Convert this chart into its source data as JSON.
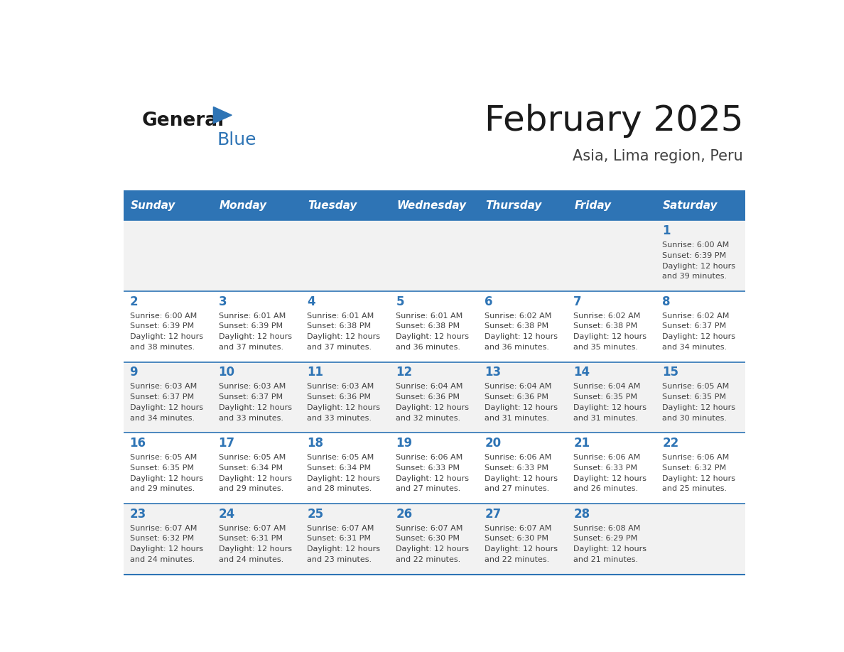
{
  "title": "February 2025",
  "subtitle": "Asia, Lima region, Peru",
  "header_bg": "#2e74b5",
  "header_text_color": "#ffffff",
  "weekdays": [
    "Sunday",
    "Monday",
    "Tuesday",
    "Wednesday",
    "Thursday",
    "Friday",
    "Saturday"
  ],
  "bg_color": "#ffffff",
  "cell_bg_odd": "#f2f2f2",
  "cell_bg_even": "#ffffff",
  "day_number_color": "#2e74b5",
  "text_color": "#404040",
  "line_color": "#2e74b5",
  "logo_general_color": "#1a1a1a",
  "logo_blue_color": "#2e74b5",
  "logo_triangle_color": "#2e74b5",
  "calendar": [
    [
      {
        "day": "",
        "sunrise": "",
        "sunset": "",
        "daylight": ""
      },
      {
        "day": "",
        "sunrise": "",
        "sunset": "",
        "daylight": ""
      },
      {
        "day": "",
        "sunrise": "",
        "sunset": "",
        "daylight": ""
      },
      {
        "day": "",
        "sunrise": "",
        "sunset": "",
        "daylight": ""
      },
      {
        "day": "",
        "sunrise": "",
        "sunset": "",
        "daylight": ""
      },
      {
        "day": "",
        "sunrise": "",
        "sunset": "",
        "daylight": ""
      },
      {
        "day": "1",
        "sunrise": "6:00 AM",
        "sunset": "6:39 PM",
        "daylight_h": "12 hours",
        "daylight_m": "and 39 minutes."
      }
    ],
    [
      {
        "day": "2",
        "sunrise": "6:00 AM",
        "sunset": "6:39 PM",
        "daylight_h": "12 hours",
        "daylight_m": "and 38 minutes."
      },
      {
        "day": "3",
        "sunrise": "6:01 AM",
        "sunset": "6:39 PM",
        "daylight_h": "12 hours",
        "daylight_m": "and 37 minutes."
      },
      {
        "day": "4",
        "sunrise": "6:01 AM",
        "sunset": "6:38 PM",
        "daylight_h": "12 hours",
        "daylight_m": "and 37 minutes."
      },
      {
        "day": "5",
        "sunrise": "6:01 AM",
        "sunset": "6:38 PM",
        "daylight_h": "12 hours",
        "daylight_m": "and 36 minutes."
      },
      {
        "day": "6",
        "sunrise": "6:02 AM",
        "sunset": "6:38 PM",
        "daylight_h": "12 hours",
        "daylight_m": "and 36 minutes."
      },
      {
        "day": "7",
        "sunrise": "6:02 AM",
        "sunset": "6:38 PM",
        "daylight_h": "12 hours",
        "daylight_m": "and 35 minutes."
      },
      {
        "day": "8",
        "sunrise": "6:02 AM",
        "sunset": "6:37 PM",
        "daylight_h": "12 hours",
        "daylight_m": "and 34 minutes."
      }
    ],
    [
      {
        "day": "9",
        "sunrise": "6:03 AM",
        "sunset": "6:37 PM",
        "daylight_h": "12 hours",
        "daylight_m": "and 34 minutes."
      },
      {
        "day": "10",
        "sunrise": "6:03 AM",
        "sunset": "6:37 PM",
        "daylight_h": "12 hours",
        "daylight_m": "and 33 minutes."
      },
      {
        "day": "11",
        "sunrise": "6:03 AM",
        "sunset": "6:36 PM",
        "daylight_h": "12 hours",
        "daylight_m": "and 33 minutes."
      },
      {
        "day": "12",
        "sunrise": "6:04 AM",
        "sunset": "6:36 PM",
        "daylight_h": "12 hours",
        "daylight_m": "and 32 minutes."
      },
      {
        "day": "13",
        "sunrise": "6:04 AM",
        "sunset": "6:36 PM",
        "daylight_h": "12 hours",
        "daylight_m": "and 31 minutes."
      },
      {
        "day": "14",
        "sunrise": "6:04 AM",
        "sunset": "6:35 PM",
        "daylight_h": "12 hours",
        "daylight_m": "and 31 minutes."
      },
      {
        "day": "15",
        "sunrise": "6:05 AM",
        "sunset": "6:35 PM",
        "daylight_h": "12 hours",
        "daylight_m": "and 30 minutes."
      }
    ],
    [
      {
        "day": "16",
        "sunrise": "6:05 AM",
        "sunset": "6:35 PM",
        "daylight_h": "12 hours",
        "daylight_m": "and 29 minutes."
      },
      {
        "day": "17",
        "sunrise": "6:05 AM",
        "sunset": "6:34 PM",
        "daylight_h": "12 hours",
        "daylight_m": "and 29 minutes."
      },
      {
        "day": "18",
        "sunrise": "6:05 AM",
        "sunset": "6:34 PM",
        "daylight_h": "12 hours",
        "daylight_m": "and 28 minutes."
      },
      {
        "day": "19",
        "sunrise": "6:06 AM",
        "sunset": "6:33 PM",
        "daylight_h": "12 hours",
        "daylight_m": "and 27 minutes."
      },
      {
        "day": "20",
        "sunrise": "6:06 AM",
        "sunset": "6:33 PM",
        "daylight_h": "12 hours",
        "daylight_m": "and 27 minutes."
      },
      {
        "day": "21",
        "sunrise": "6:06 AM",
        "sunset": "6:33 PM",
        "daylight_h": "12 hours",
        "daylight_m": "and 26 minutes."
      },
      {
        "day": "22",
        "sunrise": "6:06 AM",
        "sunset": "6:32 PM",
        "daylight_h": "12 hours",
        "daylight_m": "and 25 minutes."
      }
    ],
    [
      {
        "day": "23",
        "sunrise": "6:07 AM",
        "sunset": "6:32 PM",
        "daylight_h": "12 hours",
        "daylight_m": "and 24 minutes."
      },
      {
        "day": "24",
        "sunrise": "6:07 AM",
        "sunset": "6:31 PM",
        "daylight_h": "12 hours",
        "daylight_m": "and 24 minutes."
      },
      {
        "day": "25",
        "sunrise": "6:07 AM",
        "sunset": "6:31 PM",
        "daylight_h": "12 hours",
        "daylight_m": "and 23 minutes."
      },
      {
        "day": "26",
        "sunrise": "6:07 AM",
        "sunset": "6:30 PM",
        "daylight_h": "12 hours",
        "daylight_m": "and 22 minutes."
      },
      {
        "day": "27",
        "sunrise": "6:07 AM",
        "sunset": "6:30 PM",
        "daylight_h": "12 hours",
        "daylight_m": "and 22 minutes."
      },
      {
        "day": "28",
        "sunrise": "6:08 AM",
        "sunset": "6:29 PM",
        "daylight_h": "12 hours",
        "daylight_m": "and 21 minutes."
      },
      {
        "day": "",
        "sunrise": "",
        "sunset": "",
        "daylight_h": "",
        "daylight_m": ""
      }
    ]
  ]
}
